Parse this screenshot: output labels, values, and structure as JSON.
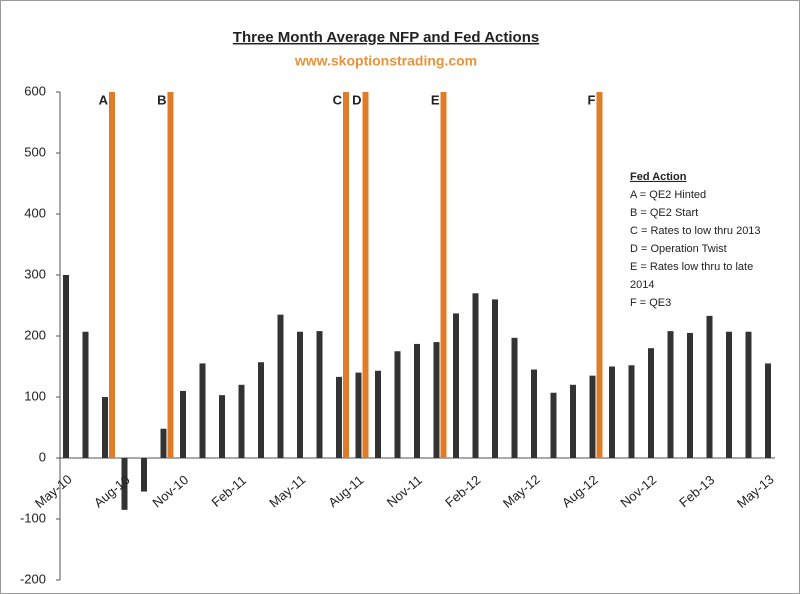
{
  "chart_data": {
    "type": "bar",
    "title": "Three Month Average NFP and Fed Actions",
    "subtitle": "www.skoptionstrading.com",
    "categories": [
      "May-10",
      null,
      null,
      "Aug-10",
      null,
      null,
      "Nov-10",
      null,
      null,
      "Feb-11",
      null,
      null,
      "May-11",
      null,
      null,
      "Aug-11",
      null,
      null,
      "Nov-11",
      null,
      null,
      "Feb-12",
      null,
      null,
      "May-12",
      null,
      null,
      "Aug-12",
      null,
      null,
      "Nov-12",
      null,
      null,
      "Feb-13",
      null,
      null,
      "May-13"
    ],
    "series": [
      {
        "color": "#333333",
        "values": [
          300,
          207,
          100,
          -85,
          -55,
          48,
          110,
          155,
          103,
          120,
          157,
          235,
          207,
          208,
          133,
          140,
          143,
          175,
          187,
          190,
          237,
          270,
          260,
          197,
          145,
          107,
          120,
          135,
          150,
          152,
          180,
          208,
          205,
          233,
          207,
          207,
          155
        ]
      },
      {
        "color": "#e07b28",
        "values": [
          null,
          null,
          600,
          null,
          null,
          600,
          null,
          null,
          null,
          null,
          null,
          null,
          null,
          null,
          600,
          600,
          null,
          null,
          null,
          600,
          null,
          null,
          null,
          null,
          null,
          null,
          null,
          600,
          null,
          null,
          null,
          null,
          null,
          null,
          null,
          null,
          null
        ]
      }
    ],
    "annotations": [
      {
        "text": "A",
        "x": 2
      },
      {
        "text": "B",
        "x": 5
      },
      {
        "text": "C",
        "x": 14
      },
      {
        "text": "D",
        "x": 15
      },
      {
        "text": "E",
        "x": 19
      },
      {
        "text": "F",
        "x": 27
      }
    ],
    "legend_box": {
      "title": "Fed Action",
      "lines": [
        "A = QE2 Hinted",
        "B = QE2 Start",
        "C = Rates to low thru 2013",
        "D = Operation Twist",
        "E = Rates low thru to late",
        "2014",
        "F  = QE3"
      ]
    },
    "ylim": [
      -200,
      600
    ],
    "yticks": [
      -200,
      -100,
      0,
      100,
      200,
      300,
      400,
      500,
      600
    ],
    "grid": false
  }
}
